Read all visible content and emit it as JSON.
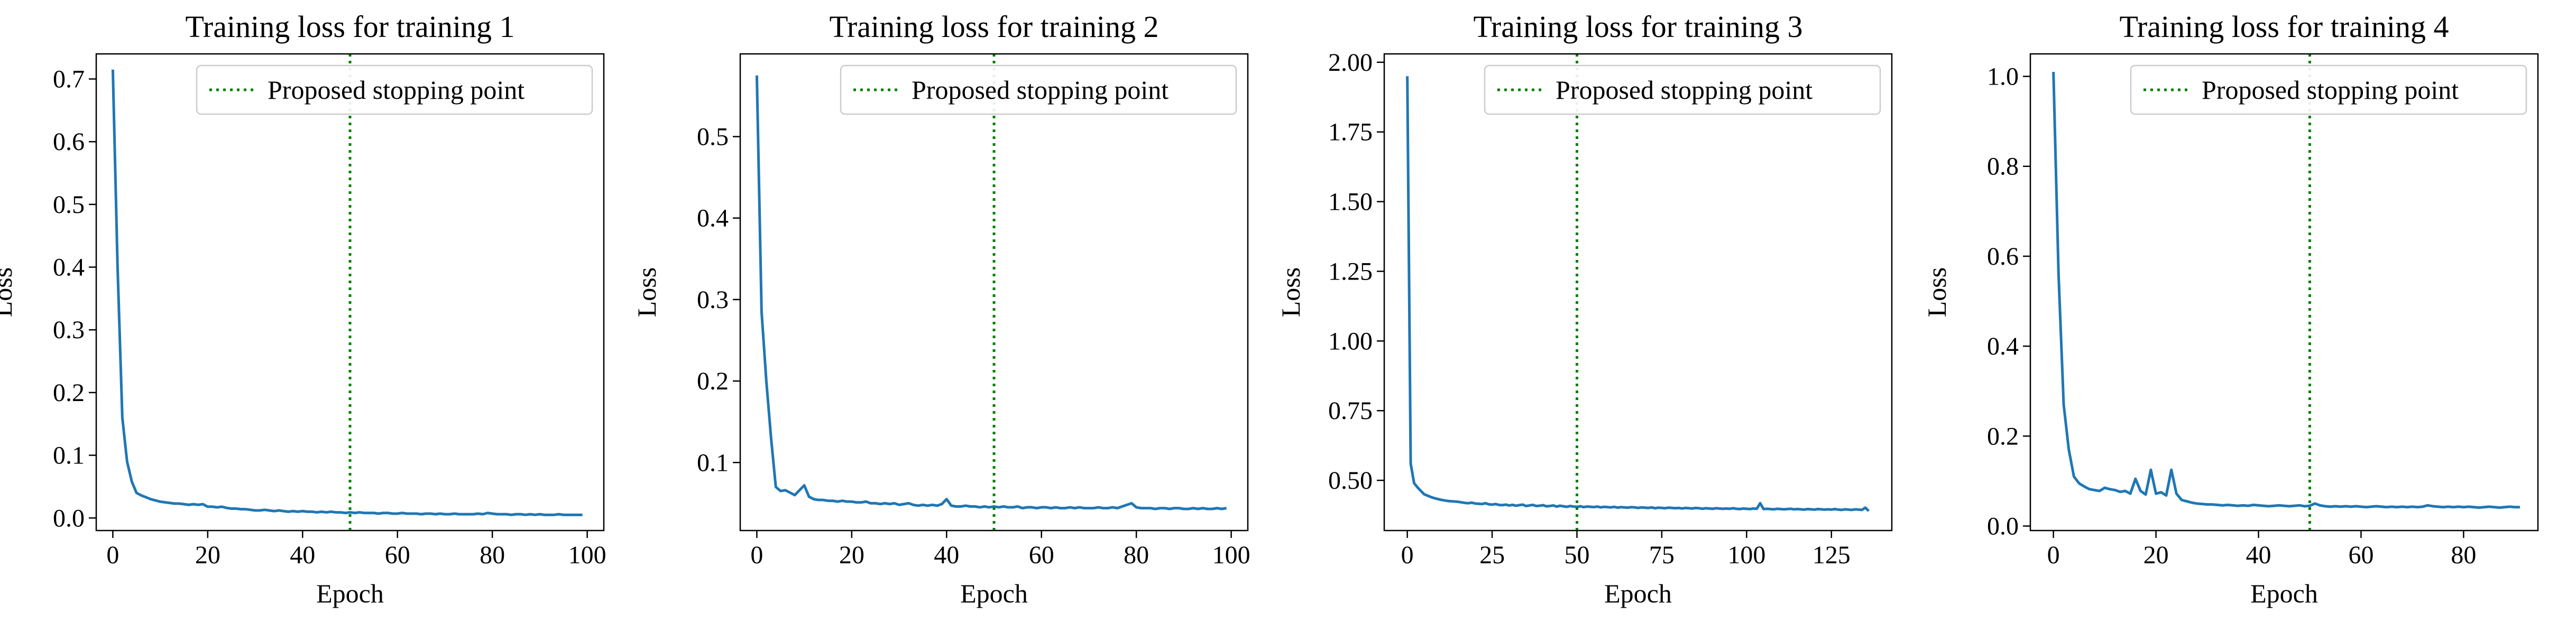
{
  "chart_data": [
    {
      "type": "line",
      "title": "Training loss for training 1",
      "xlabel": "Epoch",
      "ylabel": "Loss",
      "xlim": [
        -3.5,
        103.5
      ],
      "ylim": [
        -0.02,
        0.74
      ],
      "xticks": [
        0,
        20,
        40,
        60,
        80,
        100
      ],
      "yticks": [
        0.0,
        0.1,
        0.2,
        0.3,
        0.4,
        0.5,
        0.6,
        0.7
      ],
      "ytick_labels": [
        "0.0",
        "0.1",
        "0.2",
        "0.3",
        "0.4",
        "0.5",
        "0.6",
        "0.7"
      ],
      "grid": false,
      "legend": {
        "placement": "top-right",
        "entries": [
          "Proposed stopping point"
        ]
      },
      "colors": {
        "loss_line": "#1f77b4",
        "stopping_line": "#008000"
      },
      "stopping_point": 50,
      "series": [
        {
          "x": [
            0,
            1,
            2,
            3,
            4,
            5,
            6,
            7,
            8,
            9,
            10,
            11,
            12,
            13,
            14,
            15,
            16,
            17,
            18,
            19,
            20,
            21,
            22,
            23,
            24,
            25,
            26,
            27,
            28,
            29,
            30,
            31,
            32,
            33,
            34,
            35,
            36,
            37,
            38,
            39,
            40,
            41,
            42,
            43,
            44,
            45,
            46,
            47,
            48,
            49,
            50,
            51,
            52,
            53,
            54,
            55,
            56,
            57,
            58,
            59,
            60,
            61,
            62,
            63,
            64,
            65,
            66,
            67,
            68,
            69,
            70,
            71,
            72,
            73,
            74,
            75,
            76,
            77,
            78,
            79,
            80,
            81,
            82,
            83,
            84,
            85,
            86,
            87,
            88,
            89,
            90,
            91,
            92,
            93,
            94,
            95,
            96,
            97,
            98,
            99
          ],
          "y": [
            0.715,
            0.4,
            0.16,
            0.09,
            0.058,
            0.04,
            0.036,
            0.033,
            0.03,
            0.028,
            0.026,
            0.025,
            0.024,
            0.023,
            0.023,
            0.022,
            0.021,
            0.022,
            0.021,
            0.022,
            0.018,
            0.018,
            0.017,
            0.018,
            0.016,
            0.015,
            0.015,
            0.014,
            0.014,
            0.013,
            0.012,
            0.012,
            0.013,
            0.012,
            0.011,
            0.012,
            0.011,
            0.01,
            0.011,
            0.01,
            0.011,
            0.01,
            0.01,
            0.009,
            0.01,
            0.009,
            0.01,
            0.009,
            0.009,
            0.008,
            0.009,
            0.008,
            0.009,
            0.008,
            0.008,
            0.008,
            0.007,
            0.008,
            0.008,
            0.007,
            0.007,
            0.008,
            0.007,
            0.007,
            0.007,
            0.006,
            0.007,
            0.007,
            0.006,
            0.007,
            0.006,
            0.006,
            0.007,
            0.006,
            0.006,
            0.006,
            0.006,
            0.007,
            0.006,
            0.008,
            0.007,
            0.006,
            0.006,
            0.006,
            0.005,
            0.006,
            0.006,
            0.005,
            0.006,
            0.005,
            0.006,
            0.005,
            0.005,
            0.005,
            0.006,
            0.005,
            0.005,
            0.005,
            0.005,
            0.005
          ]
        }
      ]
    },
    {
      "type": "line",
      "title": "Training loss for training 2",
      "xlabel": "Epoch",
      "ylabel": "Loss",
      "xlim": [
        -3.5,
        103.5
      ],
      "ylim": [
        0.0165,
        0.6015
      ],
      "xticks": [
        0,
        20,
        40,
        60,
        80,
        100
      ],
      "yticks": [
        0.1,
        0.2,
        0.3,
        0.4,
        0.5
      ],
      "ytick_labels": [
        "0.1",
        "0.2",
        "0.3",
        "0.4",
        "0.5"
      ],
      "grid": false,
      "legend": {
        "placement": "top-right",
        "entries": [
          "Proposed stopping point"
        ]
      },
      "colors": {
        "loss_line": "#1f77b4",
        "stopping_line": "#008000"
      },
      "stopping_point": 50,
      "series": [
        {
          "x": [
            0,
            1,
            2,
            3,
            4,
            5,
            6,
            7,
            8,
            9,
            10,
            11,
            12,
            13,
            14,
            15,
            16,
            17,
            18,
            19,
            20,
            21,
            22,
            23,
            24,
            25,
            26,
            27,
            28,
            29,
            30,
            31,
            32,
            33,
            34,
            35,
            36,
            37,
            38,
            39,
            40,
            41,
            42,
            43,
            44,
            45,
            46,
            47,
            48,
            49,
            50,
            51,
            52,
            53,
            54,
            55,
            56,
            57,
            58,
            59,
            60,
            61,
            62,
            63,
            64,
            65,
            66,
            67,
            68,
            69,
            70,
            71,
            72,
            73,
            74,
            75,
            76,
            77,
            78,
            79,
            80,
            81,
            82,
            83,
            84,
            85,
            86,
            87,
            88,
            89,
            90,
            91,
            92,
            93,
            94,
            95,
            96,
            97,
            98,
            99
          ],
          "y": [
            0.575,
            0.285,
            0.2,
            0.13,
            0.07,
            0.065,
            0.066,
            0.063,
            0.06,
            0.066,
            0.072,
            0.058,
            0.055,
            0.054,
            0.054,
            0.053,
            0.053,
            0.052,
            0.053,
            0.052,
            0.052,
            0.051,
            0.051,
            0.052,
            0.05,
            0.05,
            0.049,
            0.05,
            0.049,
            0.05,
            0.048,
            0.049,
            0.05,
            0.048,
            0.047,
            0.048,
            0.047,
            0.048,
            0.047,
            0.049,
            0.055,
            0.047,
            0.046,
            0.046,
            0.047,
            0.046,
            0.046,
            0.045,
            0.046,
            0.045,
            0.046,
            0.045,
            0.046,
            0.045,
            0.045,
            0.046,
            0.044,
            0.045,
            0.045,
            0.044,
            0.045,
            0.045,
            0.044,
            0.045,
            0.044,
            0.044,
            0.045,
            0.044,
            0.045,
            0.044,
            0.044,
            0.044,
            0.045,
            0.044,
            0.044,
            0.045,
            0.044,
            0.046,
            0.048,
            0.05,
            0.045,
            0.044,
            0.044,
            0.044,
            0.043,
            0.044,
            0.044,
            0.043,
            0.044,
            0.044,
            0.043,
            0.043,
            0.044,
            0.043,
            0.044,
            0.043,
            0.043,
            0.044,
            0.043,
            0.044
          ]
        }
      ]
    },
    {
      "type": "line",
      "title": "Training loss for training 3",
      "xlabel": "Epoch",
      "ylabel": "Loss",
      "xlim": [
        -6.8,
        142.8
      ],
      "ylim": [
        0.32,
        2.03
      ],
      "xticks": [
        0,
        25,
        50,
        75,
        100,
        125
      ],
      "yticks": [
        0.5,
        0.75,
        1.0,
        1.25,
        1.5,
        1.75,
        2.0
      ],
      "ytick_labels": [
        "0.50",
        "0.75",
        "1.00",
        "1.25",
        "1.50",
        "1.75",
        "2.00"
      ],
      "grid": false,
      "legend": {
        "placement": "top-right",
        "entries": [
          "Proposed stopping point"
        ]
      },
      "colors": {
        "loss_line": "#1f77b4",
        "stopping_line": "#008000"
      },
      "stopping_point": 50,
      "series": [
        {
          "x": [
            0,
            1,
            2,
            3,
            4,
            5,
            6,
            7,
            8,
            9,
            10,
            11,
            12,
            13,
            14,
            15,
            16,
            17,
            18,
            19,
            20,
            21,
            22,
            23,
            24,
            25,
            26,
            27,
            28,
            29,
            30,
            31,
            32,
            33,
            34,
            35,
            36,
            37,
            38,
            39,
            40,
            41,
            42,
            43,
            44,
            45,
            46,
            47,
            48,
            49,
            50,
            51,
            52,
            53,
            54,
            55,
            56,
            57,
            58,
            59,
            60,
            61,
            62,
            63,
            64,
            65,
            66,
            67,
            68,
            69,
            70,
            71,
            72,
            73,
            74,
            75,
            76,
            77,
            78,
            79,
            80,
            81,
            82,
            83,
            84,
            85,
            86,
            87,
            88,
            89,
            90,
            91,
            92,
            93,
            94,
            95,
            96,
            97,
            98,
            99,
            100,
            101,
            102,
            103,
            104,
            105,
            106,
            107,
            108,
            109,
            110,
            111,
            112,
            113,
            114,
            115,
            116,
            117,
            118,
            119,
            120,
            121,
            122,
            123,
            124,
            125,
            126,
            127,
            128,
            129,
            130,
            131,
            132,
            133,
            134,
            135,
            136
          ],
          "y": [
            1.95,
            0.56,
            0.49,
            0.475,
            0.462,
            0.45,
            0.445,
            0.44,
            0.436,
            0.433,
            0.43,
            0.428,
            0.426,
            0.425,
            0.424,
            0.423,
            0.421,
            0.419,
            0.418,
            0.42,
            0.417,
            0.416,
            0.415,
            0.418,
            0.414,
            0.413,
            0.415,
            0.412,
            0.411,
            0.413,
            0.41,
            0.412,
            0.409,
            0.411,
            0.413,
            0.408,
            0.41,
            0.412,
            0.408,
            0.409,
            0.411,
            0.407,
            0.408,
            0.41,
            0.406,
            0.409,
            0.407,
            0.405,
            0.408,
            0.406,
            0.405,
            0.407,
            0.404,
            0.406,
            0.405,
            0.404,
            0.406,
            0.403,
            0.405,
            0.404,
            0.403,
            0.405,
            0.402,
            0.404,
            0.403,
            0.402,
            0.404,
            0.403,
            0.401,
            0.403,
            0.402,
            0.401,
            0.403,
            0.4,
            0.402,
            0.401,
            0.4,
            0.402,
            0.401,
            0.4,
            0.401,
            0.399,
            0.401,
            0.4,
            0.399,
            0.401,
            0.4,
            0.398,
            0.4,
            0.399,
            0.398,
            0.4,
            0.399,
            0.398,
            0.399,
            0.398,
            0.4,
            0.398,
            0.397,
            0.399,
            0.398,
            0.397,
            0.399,
            0.398,
            0.418,
            0.397,
            0.398,
            0.397,
            0.396,
            0.398,
            0.397,
            0.396,
            0.397,
            0.398,
            0.396,
            0.397,
            0.396,
            0.395,
            0.397,
            0.396,
            0.395,
            0.397,
            0.396,
            0.395,
            0.396,
            0.395,
            0.397,
            0.395,
            0.394,
            0.396,
            0.395,
            0.394,
            0.396,
            0.395,
            0.394,
            0.402,
            0.39
          ]
        }
      ]
    },
    {
      "type": "line",
      "title": "Training loss for training 4",
      "xlabel": "Epoch",
      "ylabel": "Loss",
      "xlim": [
        -4.5,
        94.5
      ],
      "ylim": [
        -0.01,
        1.05
      ],
      "xticks": [
        0,
        20,
        40,
        60,
        80
      ],
      "yticks": [
        0.0,
        0.2,
        0.4,
        0.6,
        0.8,
        1.0
      ],
      "ytick_labels": [
        "0.0",
        "0.2",
        "0.4",
        "0.6",
        "0.8",
        "1.0"
      ],
      "grid": false,
      "legend": {
        "placement": "top-right",
        "entries": [
          "Proposed stopping point"
        ]
      },
      "colors": {
        "loss_line": "#1f77b4",
        "stopping_line": "#008000"
      },
      "stopping_point": 50,
      "series": [
        {
          "x": [
            0,
            1,
            2,
            3,
            4,
            5,
            6,
            7,
            8,
            9,
            10,
            11,
            12,
            13,
            14,
            15,
            16,
            17,
            18,
            19,
            20,
            21,
            22,
            23,
            24,
            25,
            26,
            27,
            28,
            29,
            30,
            31,
            32,
            33,
            34,
            35,
            36,
            37,
            38,
            39,
            40,
            41,
            42,
            43,
            44,
            45,
            46,
            47,
            48,
            49,
            50,
            51,
            52,
            53,
            54,
            55,
            56,
            57,
            58,
            59,
            60,
            61,
            62,
            63,
            64,
            65,
            66,
            67,
            68,
            69,
            70,
            71,
            72,
            73,
            74,
            75,
            76,
            77,
            78,
            79,
            80,
            81,
            82,
            83,
            84,
            85,
            86,
            87,
            88,
            89,
            90,
            91
          ],
          "y": [
            1.01,
            0.56,
            0.27,
            0.17,
            0.11,
            0.095,
            0.088,
            0.082,
            0.08,
            0.078,
            0.085,
            0.082,
            0.08,
            0.076,
            0.078,
            0.072,
            0.105,
            0.078,
            0.07,
            0.125,
            0.072,
            0.075,
            0.068,
            0.125,
            0.072,
            0.058,
            0.055,
            0.052,
            0.05,
            0.049,
            0.048,
            0.048,
            0.047,
            0.046,
            0.047,
            0.046,
            0.045,
            0.046,
            0.045,
            0.047,
            0.046,
            0.045,
            0.044,
            0.045,
            0.046,
            0.045,
            0.044,
            0.045,
            0.046,
            0.044,
            0.045,
            0.05,
            0.046,
            0.044,
            0.043,
            0.044,
            0.043,
            0.044,
            0.043,
            0.044,
            0.043,
            0.042,
            0.043,
            0.044,
            0.043,
            0.042,
            0.043,
            0.042,
            0.043,
            0.042,
            0.043,
            0.042,
            0.043,
            0.046,
            0.044,
            0.043,
            0.042,
            0.043,
            0.042,
            0.043,
            0.042,
            0.043,
            0.042,
            0.041,
            0.042,
            0.043,
            0.042,
            0.041,
            0.042,
            0.043,
            0.042,
            0.042
          ]
        }
      ]
    }
  ]
}
